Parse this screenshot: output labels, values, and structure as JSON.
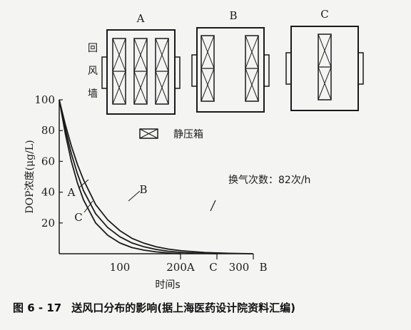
{
  "diagram": {
    "room_labels": [
      "A",
      "B",
      "C"
    ],
    "wall_label": [
      "回",
      "风",
      "墙"
    ],
    "legend_label": "静压箱"
  },
  "chart_data": {
    "type": "line",
    "ylabel": "DOP浓度(μg/L)",
    "xlabel": "时间s",
    "yticks": [
      "20",
      "40",
      "60",
      "80",
      "100"
    ],
    "xticks": [
      "100"
    ],
    "ylim": [
      0,
      100
    ],
    "annotation": "换气次数：82次/h",
    "series": [
      {
        "name": "A",
        "end_label": "200A",
        "x": [
          0,
          10,
          20,
          30,
          40,
          60,
          80,
          100,
          120,
          140,
          160,
          180,
          200
        ],
        "y": [
          100,
          78,
          60,
          46,
          35,
          20,
          12,
          7,
          4,
          2.3,
          1.2,
          0.5,
          0
        ]
      },
      {
        "name": "C",
        "end_label": "C",
        "x": [
          0,
          10,
          20,
          30,
          40,
          60,
          80,
          100,
          120,
          140,
          160,
          180,
          200,
          230,
          260
        ],
        "y": [
          100,
          81,
          65,
          52,
          41,
          26,
          17,
          11,
          7,
          4.5,
          2.8,
          1.6,
          0.9,
          0.3,
          0
        ]
      },
      {
        "name": "B",
        "end_label": "B",
        "x": [
          0,
          10,
          20,
          30,
          40,
          60,
          80,
          100,
          120,
          140,
          160,
          180,
          200,
          240,
          280,
          320
        ],
        "y": [
          100,
          84,
          70,
          58,
          48,
          32,
          22,
          15,
          10,
          6.8,
          4.5,
          3,
          2,
          0.8,
          0.3,
          0
        ]
      }
    ],
    "extra_xtick": "300"
  },
  "caption": {
    "number": "图 6 - 17",
    "text": "送风口分布的影响(据上海医药设计院资料汇编)"
  }
}
